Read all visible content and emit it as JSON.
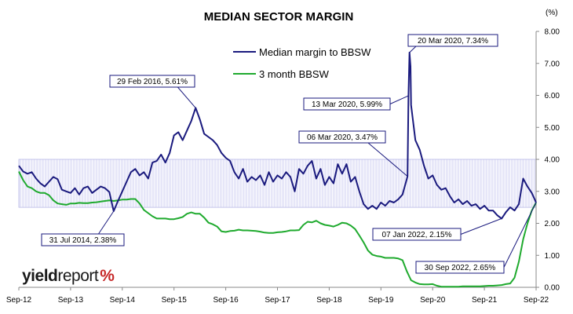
{
  "chart_data": {
    "type": "line",
    "title": "MEDIAN SECTOR MARGIN",
    "y_unit_label": "(%)",
    "ylim": [
      0,
      8
    ],
    "y_ticks": [
      "0.00",
      "1.00",
      "2.00",
      "3.00",
      "4.00",
      "5.00",
      "6.00",
      "7.00",
      "8.00"
    ],
    "x_ticks": [
      "Sep-12",
      "Sep-13",
      "Sep-14",
      "Sep-15",
      "Sep-16",
      "Sep-17",
      "Sep-18",
      "Sep-19",
      "Sep-20",
      "Sep-21",
      "Sep-22"
    ],
    "x_range": [
      "2012-09",
      "2022-09"
    ],
    "legend_placement": "top-center",
    "shaded_band": {
      "from": "2012-09",
      "to": "2022-09",
      "y_from": 2.5,
      "y_to": 4.0,
      "color": "#c8c8f0"
    },
    "series": [
      {
        "name": "Median margin to BBSW",
        "color": "#1a1a7e",
        "points": [
          [
            "2012-09",
            3.8
          ],
          [
            "2012-10",
            3.62
          ],
          [
            "2012-11",
            3.55
          ],
          [
            "2012-12",
            3.6
          ],
          [
            "2013-01",
            3.4
          ],
          [
            "2013-02",
            3.25
          ],
          [
            "2013-03",
            3.15
          ],
          [
            "2013-04",
            3.3
          ],
          [
            "2013-05",
            3.45
          ],
          [
            "2013-06",
            3.38
          ],
          [
            "2013-07",
            3.05
          ],
          [
            "2013-08",
            3.0
          ],
          [
            "2013-09",
            2.95
          ],
          [
            "2013-10",
            3.1
          ],
          [
            "2013-11",
            2.9
          ],
          [
            "2013-12",
            3.1
          ],
          [
            "2014-01",
            3.15
          ],
          [
            "2014-02",
            2.95
          ],
          [
            "2014-03",
            3.05
          ],
          [
            "2014-04",
            3.15
          ],
          [
            "2014-05",
            3.1
          ],
          [
            "2014-06",
            2.98
          ],
          [
            "2014-07",
            2.38
          ],
          [
            "2014-08",
            2.7
          ],
          [
            "2014-09",
            3.0
          ],
          [
            "2014-10",
            3.3
          ],
          [
            "2014-11",
            3.6
          ],
          [
            "2014-12",
            3.7
          ],
          [
            "2015-01",
            3.5
          ],
          [
            "2015-02",
            3.6
          ],
          [
            "2015-03",
            3.4
          ],
          [
            "2015-04",
            3.9
          ],
          [
            "2015-05",
            3.95
          ],
          [
            "2015-06",
            4.15
          ],
          [
            "2015-07",
            3.9
          ],
          [
            "2015-08",
            4.2
          ],
          [
            "2015-09",
            4.75
          ],
          [
            "2015-10",
            4.85
          ],
          [
            "2015-11",
            4.6
          ],
          [
            "2015-12",
            4.9
          ],
          [
            "2016-01",
            5.2
          ],
          [
            "2016-02",
            5.61
          ],
          [
            "2016-03",
            5.25
          ],
          [
            "2016-04",
            4.8
          ],
          [
            "2016-05",
            4.7
          ],
          [
            "2016-06",
            4.6
          ],
          [
            "2016-07",
            4.45
          ],
          [
            "2016-08",
            4.2
          ],
          [
            "2016-09",
            4.05
          ],
          [
            "2016-10",
            3.95
          ],
          [
            "2016-11",
            3.6
          ],
          [
            "2016-12",
            3.4
          ],
          [
            "2017-01",
            3.7
          ],
          [
            "2017-02",
            3.3
          ],
          [
            "2017-03",
            3.45
          ],
          [
            "2017-04",
            3.35
          ],
          [
            "2017-05",
            3.5
          ],
          [
            "2017-06",
            3.2
          ],
          [
            "2017-07",
            3.6
          ],
          [
            "2017-08",
            3.3
          ],
          [
            "2017-09",
            3.5
          ],
          [
            "2017-10",
            3.4
          ],
          [
            "2017-11",
            3.6
          ],
          [
            "2017-12",
            3.45
          ],
          [
            "2018-01",
            3.0
          ],
          [
            "2018-02",
            3.7
          ],
          [
            "2018-03",
            3.55
          ],
          [
            "2018-04",
            3.8
          ],
          [
            "2018-05",
            3.95
          ],
          [
            "2018-06",
            3.4
          ],
          [
            "2018-07",
            3.7
          ],
          [
            "2018-08",
            3.2
          ],
          [
            "2018-09",
            3.45
          ],
          [
            "2018-10",
            3.25
          ],
          [
            "2018-11",
            3.85
          ],
          [
            "2018-12",
            3.55
          ],
          [
            "2019-01",
            3.85
          ],
          [
            "2019-02",
            3.3
          ],
          [
            "2019-03",
            3.45
          ],
          [
            "2019-04",
            3.0
          ],
          [
            "2019-05",
            2.6
          ],
          [
            "2019-06",
            2.45
          ],
          [
            "2019-07",
            2.55
          ],
          [
            "2019-08",
            2.45
          ],
          [
            "2019-09",
            2.65
          ],
          [
            "2019-10",
            2.55
          ],
          [
            "2019-11",
            2.7
          ],
          [
            "2019-12",
            2.65
          ],
          [
            "2020-01",
            2.75
          ],
          [
            "2020-02",
            2.9
          ],
          [
            "2020-03-06",
            3.47
          ],
          [
            "2020-03-13",
            5.99
          ],
          [
            "2020-03-20",
            7.34
          ],
          [
            "2020-03-27",
            6.9
          ],
          [
            "2020-04",
            5.7
          ],
          [
            "2020-05",
            4.6
          ],
          [
            "2020-06",
            4.3
          ],
          [
            "2020-07",
            3.8
          ],
          [
            "2020-08",
            3.4
          ],
          [
            "2020-09",
            3.5
          ],
          [
            "2020-10",
            3.2
          ],
          [
            "2020-11",
            3.05
          ],
          [
            "2020-12",
            3.1
          ],
          [
            "2021-01",
            2.85
          ],
          [
            "2021-02",
            2.65
          ],
          [
            "2021-03",
            2.75
          ],
          [
            "2021-04",
            2.6
          ],
          [
            "2021-05",
            2.7
          ],
          [
            "2021-06",
            2.55
          ],
          [
            "2021-07",
            2.6
          ],
          [
            "2021-08",
            2.45
          ],
          [
            "2021-09",
            2.55
          ],
          [
            "2021-10",
            2.4
          ],
          [
            "2021-11",
            2.4
          ],
          [
            "2021-12",
            2.25
          ],
          [
            "2022-01",
            2.15
          ],
          [
            "2022-02",
            2.35
          ],
          [
            "2022-03",
            2.5
          ],
          [
            "2022-04",
            2.4
          ],
          [
            "2022-05",
            2.6
          ],
          [
            "2022-06",
            3.4
          ],
          [
            "2022-07",
            3.15
          ],
          [
            "2022-08",
            2.95
          ],
          [
            "2022-09",
            2.65
          ]
        ]
      },
      {
        "name": "3 month BBSW",
        "color": "#1faa2e",
        "points": [
          [
            "2012-09",
            3.62
          ],
          [
            "2012-10",
            3.35
          ],
          [
            "2012-11",
            3.15
          ],
          [
            "2012-12",
            3.1
          ],
          [
            "2013-01",
            3.0
          ],
          [
            "2013-02",
            2.95
          ],
          [
            "2013-03",
            2.95
          ],
          [
            "2013-04",
            2.88
          ],
          [
            "2013-05",
            2.72
          ],
          [
            "2013-06",
            2.62
          ],
          [
            "2013-07",
            2.6
          ],
          [
            "2013-08",
            2.58
          ],
          [
            "2013-09",
            2.62
          ],
          [
            "2013-10",
            2.62
          ],
          [
            "2013-11",
            2.64
          ],
          [
            "2013-12",
            2.63
          ],
          [
            "2014-01",
            2.63
          ],
          [
            "2014-02",
            2.65
          ],
          [
            "2014-03",
            2.66
          ],
          [
            "2014-04",
            2.68
          ],
          [
            "2014-05",
            2.7
          ],
          [
            "2014-06",
            2.72
          ],
          [
            "2014-07",
            2.7
          ],
          [
            "2014-08",
            2.72
          ],
          [
            "2014-09",
            2.74
          ],
          [
            "2014-10",
            2.74
          ],
          [
            "2014-11",
            2.76
          ],
          [
            "2014-12",
            2.76
          ],
          [
            "2015-01",
            2.62
          ],
          [
            "2015-02",
            2.42
          ],
          [
            "2015-03",
            2.32
          ],
          [
            "2015-04",
            2.22
          ],
          [
            "2015-05",
            2.15
          ],
          [
            "2015-06",
            2.15
          ],
          [
            "2015-07",
            2.15
          ],
          [
            "2015-08",
            2.13
          ],
          [
            "2015-09",
            2.13
          ],
          [
            "2015-10",
            2.16
          ],
          [
            "2015-11",
            2.2
          ],
          [
            "2015-12",
            2.3
          ],
          [
            "2016-01",
            2.34
          ],
          [
            "2016-02",
            2.3
          ],
          [
            "2016-03",
            2.3
          ],
          [
            "2016-04",
            2.18
          ],
          [
            "2016-05",
            2.02
          ],
          [
            "2016-06",
            1.97
          ],
          [
            "2016-07",
            1.9
          ],
          [
            "2016-08",
            1.75
          ],
          [
            "2016-09",
            1.73
          ],
          [
            "2016-10",
            1.76
          ],
          [
            "2016-11",
            1.77
          ],
          [
            "2016-12",
            1.8
          ],
          [
            "2017-01",
            1.78
          ],
          [
            "2017-02",
            1.78
          ],
          [
            "2017-03",
            1.77
          ],
          [
            "2017-04",
            1.76
          ],
          [
            "2017-05",
            1.74
          ],
          [
            "2017-06",
            1.71
          ],
          [
            "2017-07",
            1.7
          ],
          [
            "2017-08",
            1.7
          ],
          [
            "2017-09",
            1.72
          ],
          [
            "2017-10",
            1.73
          ],
          [
            "2017-11",
            1.75
          ],
          [
            "2017-12",
            1.78
          ],
          [
            "2018-01",
            1.78
          ],
          [
            "2018-02",
            1.79
          ],
          [
            "2018-03",
            1.95
          ],
          [
            "2018-04",
            2.05
          ],
          [
            "2018-05",
            2.03
          ],
          [
            "2018-06",
            2.08
          ],
          [
            "2018-07",
            2.0
          ],
          [
            "2018-08",
            1.95
          ],
          [
            "2018-09",
            1.93
          ],
          [
            "2018-10",
            1.9
          ],
          [
            "2018-11",
            1.95
          ],
          [
            "2018-12",
            2.02
          ],
          [
            "2019-01",
            2.0
          ],
          [
            "2019-02",
            1.93
          ],
          [
            "2019-03",
            1.82
          ],
          [
            "2019-04",
            1.62
          ],
          [
            "2019-05",
            1.4
          ],
          [
            "2019-06",
            1.15
          ],
          [
            "2019-07",
            1.02
          ],
          [
            "2019-08",
            0.98
          ],
          [
            "2019-09",
            0.96
          ],
          [
            "2019-10",
            0.92
          ],
          [
            "2019-11",
            0.92
          ],
          [
            "2019-12",
            0.92
          ],
          [
            "2020-01",
            0.9
          ],
          [
            "2020-02",
            0.85
          ],
          [
            "2020-03",
            0.5
          ],
          [
            "2020-04",
            0.22
          ],
          [
            "2020-05",
            0.15
          ],
          [
            "2020-06",
            0.1
          ],
          [
            "2020-07",
            0.09
          ],
          [
            "2020-08",
            0.09
          ],
          [
            "2020-09",
            0.1
          ],
          [
            "2020-10",
            0.05
          ],
          [
            "2020-11",
            0.02
          ],
          [
            "2020-12",
            0.02
          ],
          [
            "2021-01",
            0.02
          ],
          [
            "2021-02",
            0.02
          ],
          [
            "2021-03",
            0.02
          ],
          [
            "2021-04",
            0.03
          ],
          [
            "2021-05",
            0.03
          ],
          [
            "2021-06",
            0.03
          ],
          [
            "2021-07",
            0.03
          ],
          [
            "2021-08",
            0.03
          ],
          [
            "2021-09",
            0.04
          ],
          [
            "2021-10",
            0.05
          ],
          [
            "2021-11",
            0.05
          ],
          [
            "2021-12",
            0.06
          ],
          [
            "2022-01",
            0.07
          ],
          [
            "2022-02",
            0.1
          ],
          [
            "2022-03",
            0.12
          ],
          [
            "2022-04",
            0.3
          ],
          [
            "2022-05",
            0.8
          ],
          [
            "2022-06",
            1.5
          ],
          [
            "2022-07",
            2.0
          ],
          [
            "2022-08",
            2.4
          ],
          [
            "2022-09",
            2.65
          ]
        ]
      }
    ],
    "annotations": [
      {
        "text": "20 Mar 2020, 7.34%",
        "date": "2020-03-20",
        "value": 7.34
      },
      {
        "text": "29 Feb 2016, 5.61%",
        "date": "2016-02",
        "value": 5.61
      },
      {
        "text": "13 Mar 2020, 5.99%",
        "date": "2020-03-13",
        "value": 5.99
      },
      {
        "text": "06 Mar 2020, 3.47%",
        "date": "2020-03-06",
        "value": 3.47
      },
      {
        "text": "31 Jul 2014, 2.38%",
        "date": "2014-07",
        "value": 2.38
      },
      {
        "text": "07 Jan 2022, 2.15%",
        "date": "2022-01",
        "value": 2.15
      },
      {
        "text": "30 Sep 2022, 2.65%",
        "date": "2022-09",
        "value": 2.65
      }
    ]
  },
  "logo": {
    "part1": "yield",
    "part2": "report",
    "symbol_left": "%",
    "symbol_right": ""
  }
}
